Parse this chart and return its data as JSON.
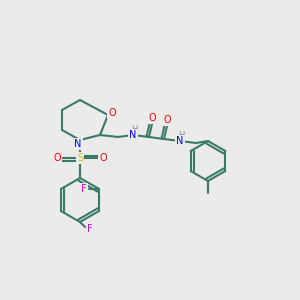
{
  "background_color": "#ebebeb",
  "figsize": [
    3.0,
    3.0
  ],
  "dpi": 100,
  "bond_color": "#3a7a6a",
  "bond_width": 1.5,
  "atom_colors": {
    "O": "#ff0000",
    "N": "#0000ff",
    "S": "#cccc00",
    "F": "#cc00cc",
    "H_label": "#888888",
    "C": "#000000"
  }
}
